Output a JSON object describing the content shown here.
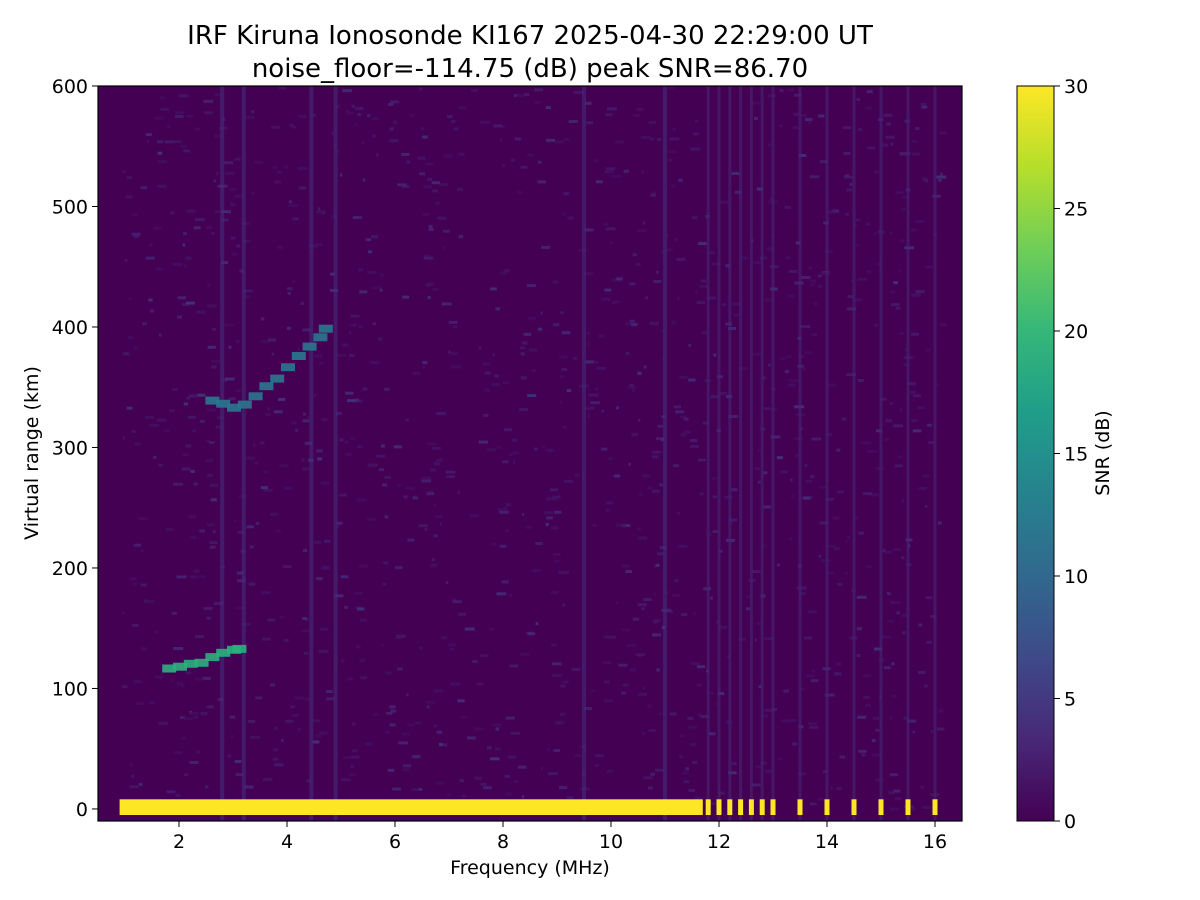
{
  "chart_data": {
    "type": "heatmap",
    "title_line1": "IRF Kiruna Ionosonde KI167 2025-04-30 22:29:00  UT",
    "title_line2": "noise_floor=-114.75 (dB) peak SNR=86.70",
    "xlabel": "Frequency (MHz)",
    "ylabel": "Virtual range (km)",
    "xlim": [
      0.5,
      16.5
    ],
    "ylim": [
      -10,
      600
    ],
    "x_ticks": [
      2,
      4,
      6,
      8,
      10,
      12,
      14,
      16
    ],
    "y_ticks": [
      0,
      100,
      200,
      300,
      400,
      500,
      600
    ],
    "colorbar": {
      "label": "SNR (dB)",
      "range": [
        0,
        30
      ],
      "ticks": [
        0,
        5,
        10,
        15,
        20,
        25,
        30
      ],
      "colormap": "viridis",
      "stops": [
        "#440154",
        "#482878",
        "#3e4a89",
        "#31688e",
        "#26828e",
        "#1f9e89",
        "#35b779",
        "#6ece58",
        "#b5de2b",
        "#fde725"
      ]
    },
    "sweep_freq_range_mhz": [
      0.9,
      16.1
    ],
    "ground_echo": {
      "range_km": [
        -5,
        8
      ],
      "freq_mhz": [
        0.9,
        11.7
      ],
      "snr_db": 30
    },
    "discrete_channels_mhz": [
      11.8,
      12.0,
      12.2,
      12.4,
      12.6,
      12.8,
      13.0,
      13.5,
      14.0,
      14.5,
      15.0,
      15.5,
      16.0
    ],
    "e_layer_trace": {
      "freq_mhz": [
        1.8,
        2.0,
        2.2,
        2.4,
        2.6,
        2.8,
        3.0,
        3.1
      ],
      "range_km": [
        117,
        118,
        120,
        122,
        126,
        129,
        131,
        133
      ],
      "snr_db": 19
    },
    "f_layer_trace": {
      "freq_mhz": [
        2.6,
        2.8,
        3.0,
        3.2,
        3.4,
        3.6,
        3.8,
        4.0,
        4.2,
        4.4,
        4.6,
        4.7
      ],
      "range_km": [
        338,
        336,
        334,
        336,
        342,
        350,
        358,
        368,
        376,
        384,
        392,
        400
      ],
      "snr_db": 12
    },
    "vertical_streaks_mhz": [
      2.8,
      3.2,
      4.45,
      4.9,
      9.5,
      11.0
    ]
  }
}
